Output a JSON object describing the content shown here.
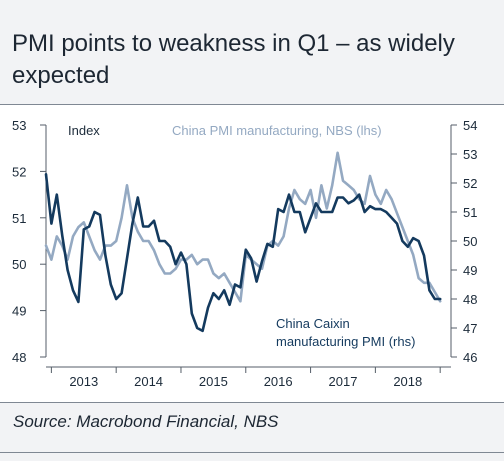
{
  "title": "PMI points to weakness in Q1 – as widely expected",
  "source": "Source: Macrobond Financial, NBS",
  "colors": {
    "nbs": "#94a9c2",
    "caixin": "#143a5e",
    "axis": "#555e68",
    "text": "#1c2b3a"
  },
  "chart_data": {
    "type": "line",
    "unit_label": "Index",
    "x_labels": [
      "2013",
      "2014",
      "2015",
      "2016",
      "2017",
      "2018"
    ],
    "x_range": [
      2012.917,
      2019.167
    ],
    "left_axis": {
      "ticks": [
        "53",
        "52",
        "51",
        "50",
        "49",
        "48"
      ],
      "range": [
        48,
        53
      ]
    },
    "right_axis": {
      "ticks": [
        "54",
        "53",
        "52",
        "51",
        "50",
        "49",
        "48",
        "47",
        "46"
      ],
      "range": [
        46,
        54
      ]
    },
    "series": [
      {
        "name": "China PMI manufacturing, NBS (lhs)",
        "axis": "left",
        "x": [
          2012.917,
          2013.0,
          2013.083,
          2013.167,
          2013.25,
          2013.333,
          2013.417,
          2013.5,
          2013.583,
          2013.667,
          2013.75,
          2013.833,
          2013.917,
          2014.0,
          2014.083,
          2014.167,
          2014.25,
          2014.333,
          2014.417,
          2014.5,
          2014.583,
          2014.667,
          2014.75,
          2014.833,
          2014.917,
          2015.0,
          2015.083,
          2015.167,
          2015.25,
          2015.333,
          2015.417,
          2015.5,
          2015.583,
          2015.667,
          2015.75,
          2015.833,
          2015.917,
          2016.0,
          2016.083,
          2016.167,
          2016.25,
          2016.333,
          2016.417,
          2016.5,
          2016.583,
          2016.667,
          2016.75,
          2016.833,
          2016.917,
          2017.0,
          2017.083,
          2017.167,
          2017.25,
          2017.333,
          2017.417,
          2017.5,
          2017.583,
          2017.667,
          2017.75,
          2017.833,
          2017.917,
          2018.0,
          2018.083,
          2018.167,
          2018.25,
          2018.333,
          2018.417,
          2018.5,
          2018.583,
          2018.667,
          2018.75,
          2018.833,
          2018.917,
          2019.0
        ],
        "y": [
          50.4,
          50.1,
          50.6,
          50.4,
          50.1,
          50.6,
          50.8,
          50.9,
          50.6,
          50.3,
          50.1,
          50.4,
          50.4,
          50.5,
          51.0,
          51.7,
          51.0,
          50.7,
          50.5,
          50.5,
          50.3,
          50.0,
          49.8,
          49.8,
          49.9,
          50.1,
          50.1,
          50.2,
          50.0,
          50.1,
          50.1,
          49.8,
          49.7,
          49.8,
          49.6,
          49.4,
          49.2,
          50.2,
          50.1,
          50.0,
          49.9,
          50.4,
          50.5,
          50.4,
          50.6,
          51.2,
          51.6,
          51.4,
          51.3,
          51.6,
          51.0,
          51.7,
          51.2,
          51.7,
          52.4,
          51.8,
          51.7,
          51.6,
          51.4,
          51.3,
          51.9,
          51.5,
          51.3,
          51.6,
          51.4,
          51.1,
          50.8,
          50.5,
          50.2,
          49.7,
          49.6,
          49.6,
          49.4,
          49.2
        ]
      },
      {
        "name": "China Caixin manufacturing PMI (rhs)",
        "axis": "right",
        "x": [
          2012.917,
          2013.0,
          2013.083,
          2013.167,
          2013.25,
          2013.333,
          2013.417,
          2013.5,
          2013.583,
          2013.667,
          2013.75,
          2013.833,
          2013.917,
          2014.0,
          2014.083,
          2014.167,
          2014.25,
          2014.333,
          2014.417,
          2014.5,
          2014.583,
          2014.667,
          2014.75,
          2014.833,
          2014.917,
          2015.0,
          2015.083,
          2015.167,
          2015.25,
          2015.333,
          2015.417,
          2015.5,
          2015.583,
          2015.667,
          2015.75,
          2015.833,
          2015.917,
          2016.0,
          2016.083,
          2016.167,
          2016.25,
          2016.333,
          2016.417,
          2016.5,
          2016.583,
          2016.667,
          2016.75,
          2016.833,
          2016.917,
          2017.0,
          2017.083,
          2017.167,
          2017.25,
          2017.333,
          2017.417,
          2017.5,
          2017.583,
          2017.667,
          2017.75,
          2017.833,
          2017.917,
          2018.0,
          2018.083,
          2018.167,
          2018.25,
          2018.333,
          2018.417,
          2018.5,
          2018.583,
          2018.667,
          2018.75,
          2018.833,
          2018.917,
          2019.0
        ],
        "y": [
          52.3,
          50.6,
          51.6,
          50.2,
          49.0,
          48.3,
          47.9,
          50.4,
          50.5,
          51.0,
          50.9,
          49.5,
          48.5,
          48.0,
          48.2,
          49.4,
          50.6,
          51.5,
          50.5,
          50.5,
          50.7,
          50.0,
          50.0,
          49.8,
          49.2,
          49.6,
          49.2,
          47.5,
          47.0,
          46.9,
          47.7,
          48.2,
          48.0,
          48.3,
          47.8,
          48.5,
          48.4,
          49.7,
          49.4,
          48.6,
          49.3,
          49.9,
          49.8,
          51.1,
          51.0,
          51.6,
          51.0,
          51.0,
          50.3,
          50.8,
          51.3,
          51.0,
          51.0,
          51.0,
          51.5,
          51.5,
          51.3,
          51.4,
          51.6,
          51.0,
          51.2,
          51.1,
          51.1,
          51.0,
          50.8,
          50.6,
          50.0,
          49.8,
          50.1,
          50.0,
          49.5,
          48.3,
          48.0,
          48.0
        ]
      }
    ]
  }
}
